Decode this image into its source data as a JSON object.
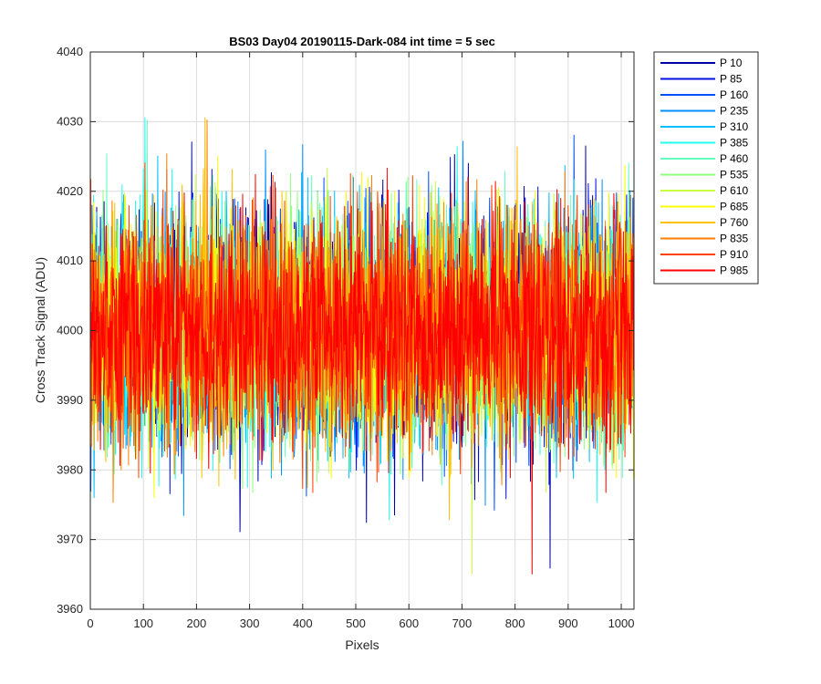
{
  "chart_data": {
    "type": "line",
    "title": "BS03 Day04 20190115-Dark-084 int time = 5 sec",
    "xlabel": "Pixels",
    "ylabel": "Cross Track Signal (ADU)",
    "xlim": [
      0,
      1024
    ],
    "ylim": [
      3960,
      4040
    ],
    "xticks": [
      0,
      100,
      200,
      300,
      400,
      500,
      600,
      700,
      800,
      900,
      1000
    ],
    "yticks": [
      3960,
      3970,
      3980,
      3990,
      4000,
      4010,
      4020,
      4030,
      4040
    ],
    "grid": true,
    "legend_position": "outside-top-right",
    "n_points": 1024,
    "series_mean": 4000,
    "series_spread": 8,
    "series": [
      {
        "name": "P 10",
        "color": "#0000a8"
      },
      {
        "name": "P 85",
        "color": "#0010e0"
      },
      {
        "name": "P 160",
        "color": "#0050ff"
      },
      {
        "name": "P 235",
        "color": "#0090ff"
      },
      {
        "name": "P 310",
        "color": "#00c0ff"
      },
      {
        "name": "P 385",
        "color": "#20ffee"
      },
      {
        "name": "P 460",
        "color": "#60ffc0"
      },
      {
        "name": "P 535",
        "color": "#90ff80"
      },
      {
        "name": "P 610",
        "color": "#c8ff40"
      },
      {
        "name": "P 685",
        "color": "#ffff00"
      },
      {
        "name": "P 760",
        "color": "#ffc000"
      },
      {
        "name": "P 835",
        "color": "#ff8000"
      },
      {
        "name": "P 910",
        "color": "#ff4000"
      },
      {
        "name": "P 985",
        "color": "#ff0000"
      }
    ]
  }
}
